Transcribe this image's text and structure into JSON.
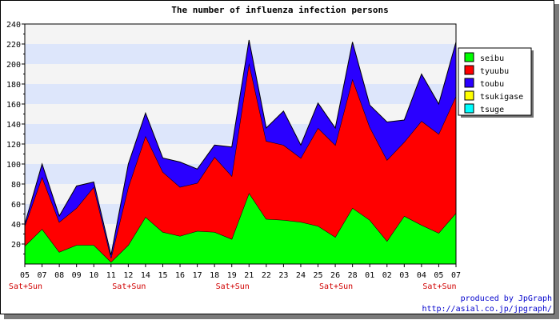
{
  "chart_data": {
    "type": "area",
    "stacked": true,
    "title": "The number of influenza infection persons",
    "xlabel": "",
    "ylabel": "",
    "ylim": [
      0,
      240
    ],
    "yticks": [
      20,
      40,
      60,
      80,
      100,
      120,
      140,
      160,
      180,
      200,
      220,
      240
    ],
    "grid": true,
    "legend_position": "right",
    "categories": [
      "05",
      "07",
      "08",
      "09",
      "10",
      "11",
      "12",
      "14",
      "15",
      "16",
      "17",
      "18",
      "19",
      "21",
      "22",
      "23",
      "24",
      "25",
      "26",
      "28",
      "01",
      "02",
      "03",
      "04",
      "05",
      "07"
    ],
    "weekend_marks": [
      {
        "index": 0,
        "label": "Sat+Sun"
      },
      {
        "index": 6,
        "label": "Sat+Sun"
      },
      {
        "index": 12,
        "label": "Sat+Sun"
      },
      {
        "index": 18,
        "label": "Sat+Sun"
      },
      {
        "index": 24,
        "label": "Sat+Sun"
      }
    ],
    "series": [
      {
        "name": "seibu",
        "color": "#00ff00",
        "values": [
          18,
          35,
          12,
          19,
          19,
          2,
          19,
          47,
          32,
          28,
          33,
          32,
          25,
          71,
          45,
          44,
          42,
          38,
          27,
          56,
          44,
          23,
          48,
          39,
          31,
          51
        ]
      },
      {
        "name": "tyuubu",
        "color": "#ff0000",
        "values": [
          20,
          52,
          30,
          37,
          58,
          4,
          58,
          81,
          60,
          49,
          48,
          75,
          63,
          130,
          78,
          75,
          64,
          98,
          92,
          129,
          93,
          81,
          74,
          104,
          99,
          117
        ]
      },
      {
        "name": "toubu",
        "color": "#2a00ff",
        "values": [
          2,
          13,
          6,
          22,
          5,
          3,
          23,
          23,
          14,
          25,
          14,
          12,
          29,
          23,
          13,
          34,
          13,
          25,
          17,
          37,
          22,
          38,
          22,
          47,
          30,
          54
        ]
      },
      {
        "name": "tsukigase",
        "color": "#ffff00",
        "values": [
          0,
          0,
          0,
          0,
          0,
          0,
          0,
          0,
          0,
          0,
          0,
          0,
          0,
          0,
          0,
          0,
          0,
          0,
          0,
          0,
          0,
          0,
          0,
          0,
          0,
          0
        ]
      },
      {
        "name": "tsuge",
        "color": "#00ffff",
        "values": [
          0,
          0,
          0,
          0,
          0,
          0,
          0,
          0,
          0,
          0,
          0,
          0,
          0,
          0,
          0,
          0,
          0,
          0,
          0,
          0,
          0,
          0,
          0,
          0,
          0,
          0
        ]
      }
    ]
  },
  "footer": {
    "line1": "produced by JpGraph",
    "line2": "http://asial.co.jp/jpgraph/"
  }
}
